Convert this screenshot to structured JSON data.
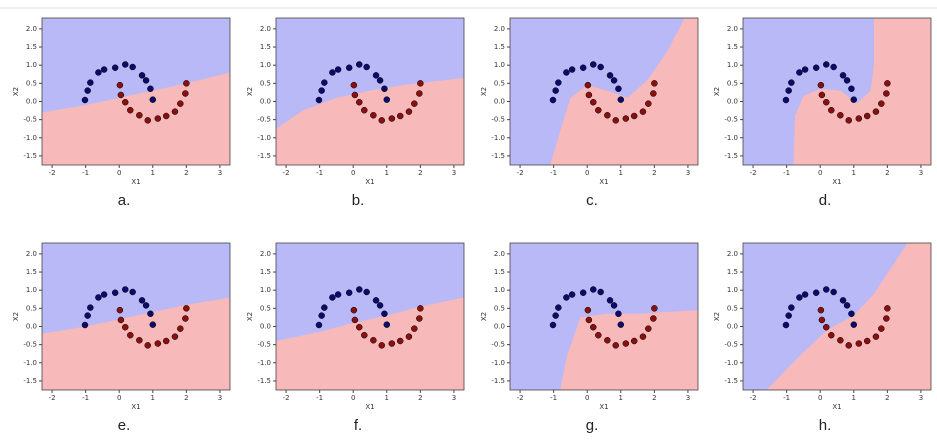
{
  "chart_data": [
    {
      "type": "scatter",
      "label": "a.",
      "xlabel": "X1",
      "ylabel": "X2",
      "xlim": [
        -2.3,
        3.3
      ],
      "ylim": [
        -1.75,
        2.3
      ],
      "xticks": [
        -2,
        -1,
        0,
        1,
        2,
        3
      ],
      "yticks": [
        -1.5,
        {
          "value": -1.0,
          "label": "-1.0"
        },
        -0.5,
        {
          "value": 0.0,
          "label": "0.0"
        },
        0.5,
        {
          "value": 1.0,
          "label": "1.0"
        },
        1.5,
        {
          "value": 2.0,
          "label": "2.0"
        }
      ],
      "above_color": "#b9b9f7",
      "below_color": "#f7b9b9",
      "boundary": {
        "x": [
          -2.3,
          -1,
          0,
          1,
          2,
          3.3
        ],
        "y": [
          -0.3,
          -0.1,
          0.1,
          0.3,
          0.5,
          0.8
        ]
      },
      "series": [
        {
          "color": "#0b0b6e",
          "x": [
            1.0,
            0.93,
            0.8,
            0.68,
            0.4,
            0.18,
            -0.12,
            -0.45,
            -0.62,
            -0.86,
            -0.94,
            -1.02
          ],
          "values": [
            0.05,
            0.35,
            0.58,
            0.72,
            0.95,
            1.02,
            0.93,
            0.88,
            0.8,
            0.52,
            0.3,
            0.04
          ]
        },
        {
          "color": "#8a1010",
          "x": [
            0.02,
            0.05,
            0.18,
            0.33,
            0.6,
            0.85,
            1.15,
            1.4,
            1.66,
            1.82,
            1.97,
            2.0
          ],
          "values": [
            0.45,
            0.18,
            -0.02,
            -0.24,
            -0.38,
            -0.52,
            -0.47,
            -0.4,
            -0.28,
            -0.06,
            0.22,
            0.5
          ]
        }
      ]
    },
    {
      "type": "scatter",
      "label": "b.",
      "xlabel": "X1",
      "ylabel": "X2",
      "xlim": [
        -2.3,
        3.3
      ],
      "ylim": [
        -1.75,
        2.3
      ],
      "xticks": [
        -2,
        -1,
        0,
        1,
        2,
        3
      ],
      "yticks": [
        -1.5,
        {
          "value": -1.0,
          "label": "-1.0"
        },
        -0.5,
        {
          "value": 0.0,
          "label": "0.0"
        },
        0.5,
        {
          "value": 1.0,
          "label": "1.0"
        },
        1.5,
        {
          "value": 2.0,
          "label": "2.0"
        }
      ],
      "above_color": "#b9b9f7",
      "below_color": "#f7b9b9",
      "boundary": {
        "x": [
          -2.3,
          -1.5,
          -0.5,
          0.5,
          1.5,
          3.3
        ],
        "y": [
          -0.75,
          -0.25,
          0.1,
          0.3,
          0.45,
          0.65
        ]
      },
      "series": [
        {
          "color": "#0b0b6e",
          "x": [
            1.0,
            0.93,
            0.8,
            0.68,
            0.4,
            0.18,
            -0.12,
            -0.45,
            -0.62,
            -0.86,
            -0.94,
            -1.02
          ],
          "values": [
            0.05,
            0.35,
            0.58,
            0.72,
            0.95,
            1.02,
            0.93,
            0.88,
            0.8,
            0.52,
            0.3,
            0.04
          ]
        },
        {
          "color": "#8a1010",
          "x": [
            0.02,
            0.05,
            0.18,
            0.33,
            0.6,
            0.85,
            1.15,
            1.4,
            1.66,
            1.82,
            1.97,
            2.0
          ],
          "values": [
            0.45,
            0.18,
            -0.02,
            -0.24,
            -0.38,
            -0.52,
            -0.47,
            -0.4,
            -0.28,
            -0.06,
            0.22,
            0.5
          ]
        }
      ]
    },
    {
      "type": "scatter",
      "label": "c.",
      "xlabel": "X1",
      "ylabel": "X2",
      "xlim": [
        -2.3,
        3.3
      ],
      "ylim": [
        -1.75,
        2.3
      ],
      "xticks": [
        -2,
        -1,
        0,
        1,
        2,
        3
      ],
      "yticks": [
        -1.5,
        {
          "value": -1.0,
          "label": "-1.0"
        },
        -0.5,
        {
          "value": 0.0,
          "label": "0.0"
        },
        0.5,
        {
          "value": 1.0,
          "label": "1.0"
        },
        1.5,
        {
          "value": 2.0,
          "label": "2.0"
        }
      ],
      "above_color": "#b9b9f7",
      "below_color": "#f7b9b9",
      "boundary": {
        "x": [
          -1.1,
          -0.8,
          -0.5,
          0,
          0.6,
          1.2,
          1.8,
          2.4,
          2.9
        ],
        "y": [
          -1.75,
          -0.8,
          0.1,
          0.45,
          0.3,
          0.1,
          0.6,
          1.4,
          2.3
        ]
      },
      "series": [
        {
          "color": "#0b0b6e",
          "x": [
            1.0,
            0.93,
            0.8,
            0.68,
            0.4,
            0.18,
            -0.12,
            -0.45,
            -0.62,
            -0.86,
            -0.94,
            -1.02
          ],
          "values": [
            0.05,
            0.35,
            0.58,
            0.72,
            0.95,
            1.02,
            0.93,
            0.88,
            0.8,
            0.52,
            0.3,
            0.04
          ]
        },
        {
          "color": "#8a1010",
          "x": [
            0.02,
            0.05,
            0.18,
            0.33,
            0.6,
            0.85,
            1.15,
            1.4,
            1.66,
            1.82,
            1.97,
            2.0
          ],
          "values": [
            0.45,
            0.18,
            -0.02,
            -0.24,
            -0.38,
            -0.52,
            -0.47,
            -0.4,
            -0.28,
            -0.06,
            0.22,
            0.5
          ]
        }
      ]
    },
    {
      "type": "scatter",
      "label": "d.",
      "xlabel": "X1",
      "ylabel": "X2",
      "xlim": [
        -2.3,
        3.3
      ],
      "ylim": [
        -1.75,
        2.3
      ],
      "xticks": [
        -2,
        -1,
        0,
        1,
        2,
        3
      ],
      "yticks": [
        -1.5,
        {
          "value": -1.0,
          "label": "-1.0"
        },
        -0.5,
        {
          "value": 0.0,
          "label": "0.0"
        },
        0.5,
        {
          "value": 1.0,
          "label": "1.0"
        },
        1.5,
        {
          "value": 2.0,
          "label": "2.0"
        }
      ],
      "above_color": "#b9b9f7",
      "below_color": "#f7b9b9",
      "boundary": {
        "x": [
          -0.8,
          -0.75,
          -0.5,
          0,
          0.6,
          1.1,
          1.5,
          1.6,
          1.6
        ],
        "y": [
          -1.75,
          -0.4,
          0.15,
          0.35,
          0.3,
          -0.05,
          0.3,
          1.0,
          2.3
        ]
      },
      "series": [
        {
          "color": "#0b0b6e",
          "x": [
            1.0,
            0.93,
            0.8,
            0.68,
            0.4,
            0.18,
            -0.12,
            -0.45,
            -0.62,
            -0.86,
            -0.94,
            -1.02
          ],
          "values": [
            0.05,
            0.35,
            0.58,
            0.72,
            0.95,
            1.02,
            0.93,
            0.88,
            0.8,
            0.52,
            0.3,
            0.04
          ]
        },
        {
          "color": "#8a1010",
          "x": [
            0.02,
            0.05,
            0.18,
            0.33,
            0.6,
            0.85,
            1.15,
            1.4,
            1.66,
            1.82,
            1.97,
            2.0
          ],
          "values": [
            0.45,
            0.18,
            -0.02,
            -0.24,
            -0.38,
            -0.52,
            -0.47,
            -0.4,
            -0.28,
            -0.06,
            0.22,
            0.5
          ]
        }
      ]
    },
    {
      "type": "scatter",
      "label": "e.",
      "xlabel": "X1",
      "ylabel": "X2",
      "xlim": [
        -2.3,
        3.3
      ],
      "ylim": [
        -1.75,
        2.3
      ],
      "xticks": [
        -2,
        -1,
        0,
        1,
        2,
        3
      ],
      "yticks": [
        -1.5,
        {
          "value": -1.0,
          "label": "-1.0"
        },
        -0.5,
        {
          "value": 0.0,
          "label": "0.0"
        },
        0.5,
        {
          "value": 1.0,
          "label": "1.0"
        },
        1.5,
        {
          "value": 2.0,
          "label": "2.0"
        }
      ],
      "above_color": "#b9b9f7",
      "below_color": "#f7b9b9",
      "boundary": {
        "x": [
          -2.3,
          -1,
          0,
          1,
          2,
          3.3
        ],
        "y": [
          -0.2,
          0.0,
          0.2,
          0.4,
          0.6,
          0.8
        ]
      },
      "series": [
        {
          "color": "#0b0b6e",
          "x": [
            1.0,
            0.93,
            0.8,
            0.68,
            0.4,
            0.18,
            -0.12,
            -0.45,
            -0.62,
            -0.86,
            -0.94,
            -1.02
          ],
          "values": [
            0.05,
            0.35,
            0.58,
            0.72,
            0.95,
            1.02,
            0.93,
            0.88,
            0.8,
            0.52,
            0.3,
            0.04
          ]
        },
        {
          "color": "#8a1010",
          "x": [
            0.02,
            0.05,
            0.18,
            0.33,
            0.6,
            0.85,
            1.15,
            1.4,
            1.66,
            1.82,
            1.97,
            2.0
          ],
          "values": [
            0.45,
            0.18,
            -0.02,
            -0.24,
            -0.38,
            -0.52,
            -0.47,
            -0.4,
            -0.28,
            -0.06,
            0.22,
            0.5
          ]
        }
      ]
    },
    {
      "type": "scatter",
      "label": "f.",
      "xlabel": "X1",
      "ylabel": "X2",
      "xlim": [
        -2.3,
        3.3
      ],
      "ylim": [
        -1.75,
        2.3
      ],
      "xticks": [
        -2,
        -1,
        0,
        1,
        2,
        3
      ],
      "yticks": [
        -1.5,
        {
          "value": -1.0,
          "label": "-1.0"
        },
        -0.5,
        {
          "value": 0.0,
          "label": "0.0"
        },
        0.5,
        {
          "value": 1.0,
          "label": "1.0"
        },
        1.5,
        {
          "value": 2.0,
          "label": "2.0"
        }
      ],
      "above_color": "#b9b9f7",
      "below_color": "#f7b9b9",
      "boundary": {
        "x": [
          -2.3,
          -1,
          0,
          1,
          2,
          3.3
        ],
        "y": [
          -0.4,
          -0.15,
          0.1,
          0.3,
          0.55,
          0.8
        ]
      },
      "series": [
        {
          "color": "#0b0b6e",
          "x": [
            1.0,
            0.93,
            0.8,
            0.68,
            0.4,
            0.18,
            -0.12,
            -0.45,
            -0.62,
            -0.86,
            -0.94,
            -1.02
          ],
          "values": [
            0.05,
            0.35,
            0.58,
            0.72,
            0.95,
            1.02,
            0.93,
            0.88,
            0.8,
            0.52,
            0.3,
            0.04
          ]
        },
        {
          "color": "#8a1010",
          "x": [
            0.02,
            0.05,
            0.18,
            0.33,
            0.6,
            0.85,
            1.15,
            1.4,
            1.66,
            1.82,
            1.97,
            2.0
          ],
          "values": [
            0.45,
            0.18,
            -0.02,
            -0.24,
            -0.38,
            -0.52,
            -0.47,
            -0.4,
            -0.28,
            -0.06,
            0.22,
            0.5
          ]
        }
      ]
    },
    {
      "type": "scatter",
      "label": "g.",
      "xlabel": "X1",
      "ylabel": "X2",
      "xlim": [
        -2.3,
        3.3
      ],
      "ylim": [
        -1.75,
        2.3
      ],
      "xticks": [
        -2,
        -1,
        0,
        1,
        2,
        3
      ],
      "yticks": [
        -1.5,
        {
          "value": -1.0,
          "label": "-1.0"
        },
        -0.5,
        {
          "value": 0.0,
          "label": "0.0"
        },
        0.5,
        {
          "value": 1.0,
          "label": "1.0"
        },
        1.5,
        {
          "value": 2.0,
          "label": "2.0"
        }
      ],
      "above_color": "#b9b9f7",
      "below_color": "#f7b9b9",
      "boundary": {
        "x": [
          -0.8,
          -0.6,
          -0.2,
          0.6,
          1.5,
          3.3
        ],
        "y": [
          -1.75,
          -0.8,
          0.25,
          0.35,
          0.35,
          0.45
        ]
      },
      "series": [
        {
          "color": "#0b0b6e",
          "x": [
            1.0,
            0.93,
            0.8,
            0.68,
            0.4,
            0.18,
            -0.12,
            -0.45,
            -0.62,
            -0.86,
            -0.94,
            -1.02
          ],
          "values": [
            0.05,
            0.35,
            0.58,
            0.72,
            0.95,
            1.02,
            0.93,
            0.88,
            0.8,
            0.52,
            0.3,
            0.04
          ]
        },
        {
          "color": "#8a1010",
          "x": [
            0.02,
            0.05,
            0.18,
            0.33,
            0.6,
            0.85,
            1.15,
            1.4,
            1.66,
            1.82,
            1.97,
            2.0
          ],
          "values": [
            0.45,
            0.18,
            -0.02,
            -0.24,
            -0.38,
            -0.52,
            -0.47,
            -0.4,
            -0.28,
            -0.06,
            0.22,
            0.5
          ]
        }
      ]
    },
    {
      "type": "scatter",
      "label": "h.",
      "xlabel": "X1",
      "ylabel": "X2",
      "xlim": [
        -2.3,
        3.3
      ],
      "ylim": [
        -1.75,
        2.3
      ],
      "xticks": [
        -2,
        -1,
        0,
        1,
        2,
        3
      ],
      "yticks": [
        -1.5,
        {
          "value": -1.0,
          "label": "-1.0"
        },
        -0.5,
        {
          "value": 0.0,
          "label": "0.0"
        },
        0.5,
        {
          "value": 1.0,
          "label": "1.0"
        },
        1.5,
        {
          "value": 2.0,
          "label": "2.0"
        }
      ],
      "above_color": "#b9b9f7",
      "below_color": "#f7b9b9",
      "boundary": {
        "x": [
          -1.6,
          -0.6,
          0.2,
          1.0,
          1.6,
          2.6
        ],
        "y": [
          -1.75,
          -0.8,
          -0.1,
          0.3,
          0.9,
          2.3
        ]
      },
      "series": [
        {
          "color": "#0b0b6e",
          "x": [
            1.0,
            0.93,
            0.8,
            0.68,
            0.4,
            0.18,
            -0.12,
            -0.45,
            -0.62,
            -0.86,
            -0.94,
            -1.02
          ],
          "values": [
            0.05,
            0.35,
            0.58,
            0.72,
            0.95,
            1.02,
            0.93,
            0.88,
            0.8,
            0.52,
            0.3,
            0.04
          ]
        },
        {
          "color": "#8a1010",
          "x": [
            0.02,
            0.05,
            0.18,
            0.33,
            0.6,
            0.85,
            1.15,
            1.4,
            1.66,
            1.82,
            1.97,
            2.0
          ],
          "values": [
            0.45,
            0.18,
            -0.02,
            -0.24,
            -0.38,
            -0.52,
            -0.47,
            -0.4,
            -0.28,
            -0.06,
            0.22,
            0.5
          ]
        }
      ]
    }
  ]
}
